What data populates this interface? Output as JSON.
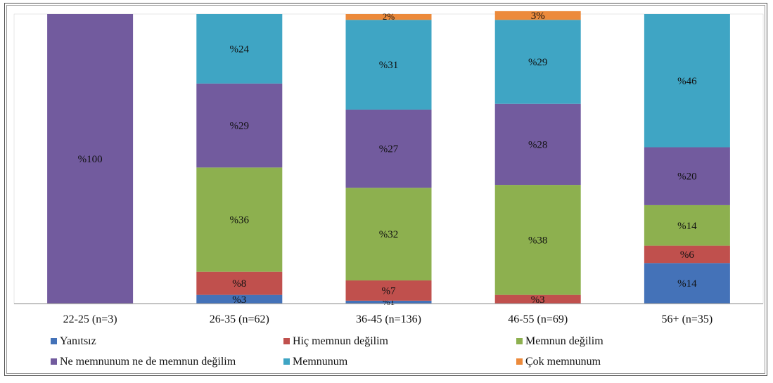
{
  "chart_data": {
    "type": "bar",
    "stacked": true,
    "categories": [
      "22-25 (n=3)",
      "26-35 (n=62)",
      "36-45 (n=136)",
      "46-55 (n=69)",
      "56+ (n=35)"
    ],
    "ylim": [
      0,
      100
    ],
    "legend_position": "bottom",
    "series": [
      {
        "name": "Yanıtsız",
        "color": "#4472b8",
        "values": [
          0,
          3,
          1,
          0,
          14
        ],
        "labels": [
          "",
          "%3",
          "%1",
          "",
          "%14"
        ]
      },
      {
        "name": "Hiç memnun değilim",
        "color": "#c0504d",
        "values": [
          0,
          8,
          7,
          3,
          6
        ],
        "labels": [
          "",
          "%8",
          "%7",
          "%3",
          "%6"
        ]
      },
      {
        "name": "Memnun değilim",
        "color": "#8db04f",
        "values": [
          0,
          36,
          32,
          38,
          14
        ],
        "labels": [
          "",
          "%36",
          "%32",
          "%38",
          "%14"
        ]
      },
      {
        "name": "Ne memnunum ne de memnun değilim",
        "color": "#725b9e",
        "values": [
          100,
          29,
          27,
          28,
          20
        ],
        "labels": [
          "%100",
          "%29",
          "%27",
          "%28",
          "%20"
        ]
      },
      {
        "name": "Memnunum",
        "color": "#3fa5c4",
        "values": [
          0,
          24,
          31,
          29,
          46
        ],
        "labels": [
          "",
          "%24",
          "%31",
          "%29",
          "%46"
        ]
      },
      {
        "name": "Çok memnunum",
        "color": "#ec8a3b",
        "values": [
          0,
          0,
          2,
          3,
          0
        ],
        "labels": [
          "",
          "",
          "2%",
          "3%",
          ""
        ]
      }
    ]
  }
}
